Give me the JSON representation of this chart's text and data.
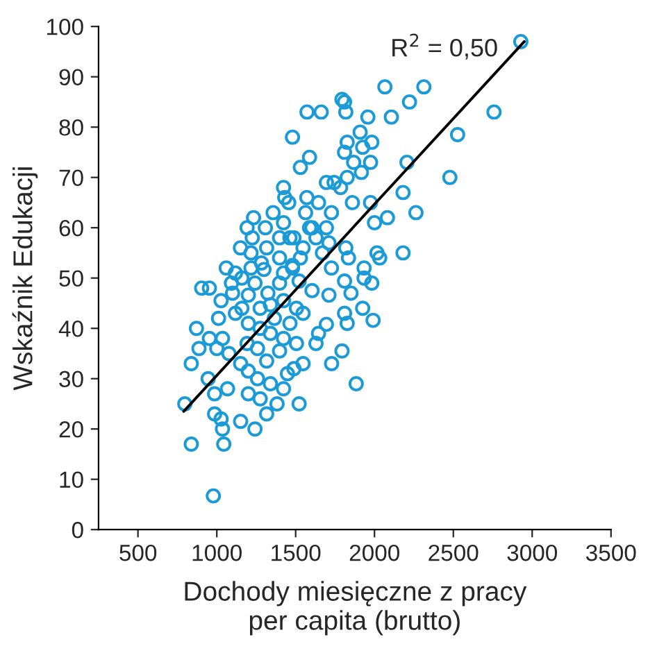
{
  "chart_data": {
    "type": "scatter",
    "xlabel": "Dochody miesięczne z pracy\nper capita (brutto)",
    "ylabel": "Wskaźnik Edukacji",
    "xlim": [
      250,
      3500
    ],
    "xticks": [
      500,
      1000,
      1500,
      2000,
      2500,
      3000,
      3500
    ],
    "ylim": [
      0,
      100
    ],
    "yticks": [
      0,
      10,
      20,
      30,
      40,
      50,
      60,
      70,
      80,
      90,
      100
    ],
    "grid": false,
    "annotations": [
      "R$^{2}$ = 0,50"
    ],
    "series": [
      {
        "marker": "circle",
        "color": "#1a9ad6",
        "x": [
          2928,
          2758,
          2527,
          2478,
          2313,
          2222,
          2066,
          2107,
          2206,
          2181,
          2263,
          2181,
          2082,
          2033,
          2000,
          1975,
          1958,
          1810,
          1818,
          1662,
          1572,
          1480,
          1827,
          1909,
          1983,
          1925,
          1810,
          1588,
          1530,
          1975,
          1868,
          1917,
          1827,
          1695,
          1744,
          1785,
          1571,
          1456,
          1645,
          1860,
          1727,
          1563,
          1604,
          1695,
          1464,
          1629,
          1711,
          1818,
          1530,
          1670,
          1835,
          2016,
          1727,
          1480,
          1934,
          1794,
          1423,
          1431,
          1357,
          1233,
          1192,
          1308,
          1225,
          1398,
          1217,
          1316,
          1283,
          1118,
          1217,
          1423,
          1489,
          1588,
          1547,
          1398,
          1480,
          978,
          838,
          1044,
          797,
          1242,
          1036,
          1027,
          986,
          1151,
          1316,
          1522,
          1884,
          904,
          838,
          887,
          871,
          945,
          986,
          1068,
          953,
          1027,
          1011,
          1036,
          1093,
          1159,
          1118,
          1077,
          1151,
          1200,
          1275,
          1382,
          1423,
          1340,
          1448,
          1489,
          1547,
          1258,
          1200,
          1316,
          1398,
          1258,
          1192,
          1340,
          1423,
          1505,
          1275,
          1200,
          1365,
          1464,
          1547,
          1275,
          1159,
          1340,
          1423,
          1505,
          1200,
          1324,
          1242,
          1398,
          1522,
          1604,
          1711,
          1299,
          1423,
          1810,
          1851,
          1934,
          1983,
          1810,
          1827,
          1925,
          1991,
          1695,
          1645,
          1629,
          1794,
          1728,
          953,
          1060,
          1100,
          1000,
          1150
        ],
        "values": [
          97,
          83,
          78.5,
          70,
          88,
          85,
          88,
          82,
          73,
          67,
          63,
          55,
          62,
          54,
          61,
          65,
          82,
          85,
          83,
          83,
          83,
          78,
          77,
          79,
          77,
          76,
          75,
          74,
          72,
          73,
          73,
          71,
          70,
          69,
          69,
          68,
          66,
          65,
          65,
          65,
          63,
          63,
          60,
          60,
          58,
          58,
          57,
          56,
          54,
          55,
          54,
          55,
          52,
          52,
          52,
          85.5,
          68,
          66,
          63,
          62,
          60,
          60,
          58,
          58,
          55,
          56,
          53,
          51,
          52,
          61,
          58,
          60,
          56,
          54,
          52.5,
          6.7,
          17,
          17,
          25,
          20,
          20,
          22,
          23,
          21.5,
          23,
          25,
          29,
          48,
          33,
          36,
          40,
          30,
          27,
          28,
          38,
          45.5,
          42,
          38,
          49,
          50,
          43,
          35,
          33,
          27,
          26,
          25,
          28,
          29,
          31,
          32,
          33,
          30,
          31.5,
          33.5,
          35.5,
          36,
          37,
          39,
          38,
          37,
          40,
          41,
          42,
          41,
          43,
          44,
          44,
          44.7,
          45.5,
          44,
          46.6,
          47,
          49,
          49,
          49.4,
          47.5,
          46.6,
          51.7,
          51,
          49.4,
          47,
          50,
          49,
          43,
          41,
          44,
          41.6,
          40.8,
          39,
          37,
          35.5,
          33,
          48,
          52,
          47,
          36,
          56
        ]
      },
      {
        "type": "line",
        "color": "#000000",
        "x": [
          790,
          2950
        ],
        "values": [
          23.5,
          97
        ]
      }
    ]
  }
}
